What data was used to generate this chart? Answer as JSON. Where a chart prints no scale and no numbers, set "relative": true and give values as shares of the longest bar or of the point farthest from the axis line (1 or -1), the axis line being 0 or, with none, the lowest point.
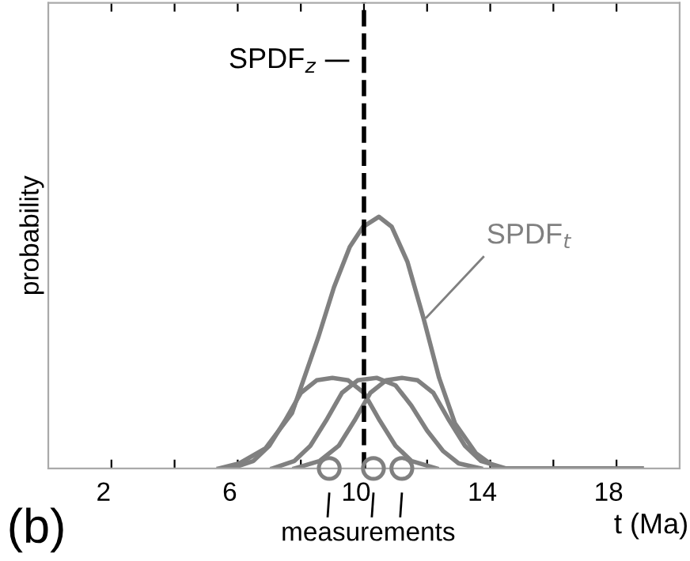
{
  "chart_data": {
    "type": "line",
    "relative": true,
    "xlabel": "t (Ma)",
    "ylabel": "probability",
    "xlim": [
      0,
      20
    ],
    "xticks": [
      2,
      {
        "value": 4,
        "label": null
      },
      6,
      {
        "value": 8,
        "label": null
      },
      10,
      {
        "value": 12,
        "label": null
      },
      14,
      {
        "value": 16,
        "label": null
      },
      18
    ],
    "grid": false,
    "legend": false,
    "line_style": "solid",
    "marker": "none",
    "series": [
      {
        "name": "SPDF$_{t}$",
        "color": "#808080",
        "x": [
          5.4,
          6.05,
          6.88,
          7.72,
          8.55,
          9.05,
          9.55,
          9.97,
          10.47,
          10.88,
          11.38,
          11.88,
          12.38,
          12.88,
          13.55,
          14.2,
          18.8
        ],
        "values": [
          0,
          0.02,
          0.08,
          0.22,
          0.52,
          0.72,
          0.88,
          0.96,
          1.0,
          0.96,
          0.82,
          0.6,
          0.36,
          0.18,
          0.06,
          0,
          0
        ]
      },
      {
        "color": "#808080",
        "x": [
          5.8,
          6.5,
          7.0,
          7.5,
          8.0,
          8.5,
          9.0,
          9.5,
          10.0,
          10.5,
          11.0,
          11.5,
          12.3
        ],
        "values": [
          0,
          0.03,
          0.09,
          0.19,
          0.3,
          0.35,
          0.36,
          0.35,
          0.3,
          0.19,
          0.09,
          0.03,
          0
        ]
      },
      {
        "color": "#808080",
        "x": [
          7.1,
          7.8,
          8.3,
          8.8,
          9.3,
          9.8,
          10.4,
          11.0,
          11.5,
          12.0,
          12.5,
          13.0,
          13.7
        ],
        "values": [
          0,
          0.03,
          0.09,
          0.19,
          0.3,
          0.35,
          0.36,
          0.33,
          0.25,
          0.15,
          0.07,
          0.02,
          0
        ]
      },
      {
        "color": "#808080",
        "x": [
          7.8,
          8.6,
          9.2,
          9.7,
          10.2,
          10.7,
          11.2,
          11.7,
          12.2,
          12.7,
          13.2,
          13.7,
          14.5
        ],
        "values": [
          0,
          0.03,
          0.09,
          0.19,
          0.3,
          0.35,
          0.36,
          0.35,
          0.3,
          0.19,
          0.09,
          0.03,
          0
        ]
      },
      {
        "type": "scatter",
        "marker": "circle",
        "color": "#808080",
        "x": [
          8.9,
          10.3,
          11.2
        ],
        "values": [
          0,
          0,
          0
        ]
      }
    ],
    "ref_lines": [
      {
        "axis": "x",
        "value": 10,
        "label": "SPDF$_{z}$",
        "line_style": "dashed",
        "color": "#000000"
      }
    ],
    "annotations": [
      "(b)",
      "measurements"
    ]
  }
}
